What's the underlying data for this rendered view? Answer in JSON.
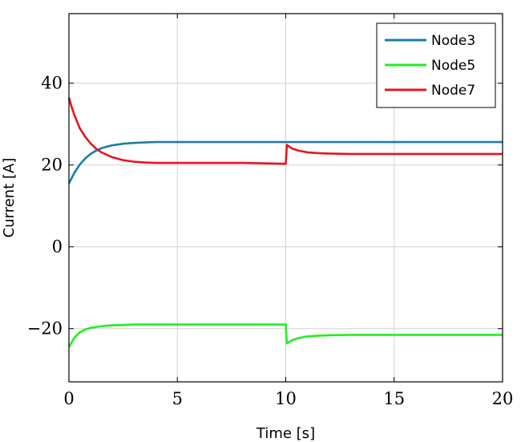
{
  "chart_data": {
    "type": "line",
    "xlabel": "Time [s]",
    "ylabel": "Current [A]",
    "xlim": [
      0,
      20
    ],
    "ylim": [
      -33,
      57
    ],
    "xticks": [
      0,
      5,
      10,
      15,
      20
    ],
    "yticks": [
      -20,
      0,
      20,
      40
    ],
    "xtick_labels": [
      "0",
      "5",
      "10",
      "15",
      "20"
    ],
    "ytick_labels": [
      "−20",
      "0",
      "20",
      "40"
    ],
    "grid": true,
    "legend_position": "top-right",
    "series": [
      {
        "name": "Node3",
        "color": "#1a7ea8",
        "x": [
          0,
          0.25,
          0.5,
          0.75,
          1,
          1.25,
          1.5,
          1.75,
          2,
          2.5,
          3,
          3.5,
          4,
          5,
          6,
          8,
          10,
          10.05,
          12,
          15,
          20
        ],
        "y": [
          15.5,
          18.1,
          20.1,
          21.6,
          22.7,
          23.5,
          24.1,
          24.5,
          24.8,
          25.2,
          25.4,
          25.5,
          25.6,
          25.6,
          25.6,
          25.6,
          25.6,
          25.6,
          25.6,
          25.6,
          25.6
        ]
      },
      {
        "name": "Node5",
        "color": "#22ee22",
        "x": [
          0,
          0.25,
          0.5,
          0.75,
          1,
          1.5,
          2,
          2.5,
          3,
          4,
          5,
          6,
          8,
          10,
          10.05,
          10.3,
          10.6,
          11,
          11.5,
          12,
          13,
          15,
          20
        ],
        "y": [
          -24.5,
          -22.2,
          -20.9,
          -20.2,
          -19.8,
          -19.4,
          -19.2,
          -19.1,
          -19.0,
          -19.0,
          -19.0,
          -19.0,
          -19.0,
          -19.0,
          -23.6,
          -22.8,
          -22.3,
          -21.9,
          -21.7,
          -21.6,
          -21.5,
          -21.5,
          -21.5
        ]
      },
      {
        "name": "Node7",
        "color": "#e8141c",
        "x": [
          0,
          0.1,
          0.25,
          0.5,
          0.75,
          1,
          1.25,
          1.5,
          2,
          2.5,
          3,
          3.5,
          4,
          5,
          6,
          8,
          10,
          10.05,
          10.3,
          10.6,
          11,
          11.5,
          12,
          13,
          15,
          20
        ],
        "y": [
          36.5,
          34.6,
          32.2,
          29.0,
          26.9,
          25.3,
          24.0,
          23.1,
          21.9,
          21.2,
          20.8,
          20.6,
          20.5,
          20.5,
          20.5,
          20.5,
          20.3,
          24.9,
          24.0,
          23.5,
          23.1,
          22.9,
          22.8,
          22.7,
          22.7,
          22.7
        ]
      }
    ]
  }
}
